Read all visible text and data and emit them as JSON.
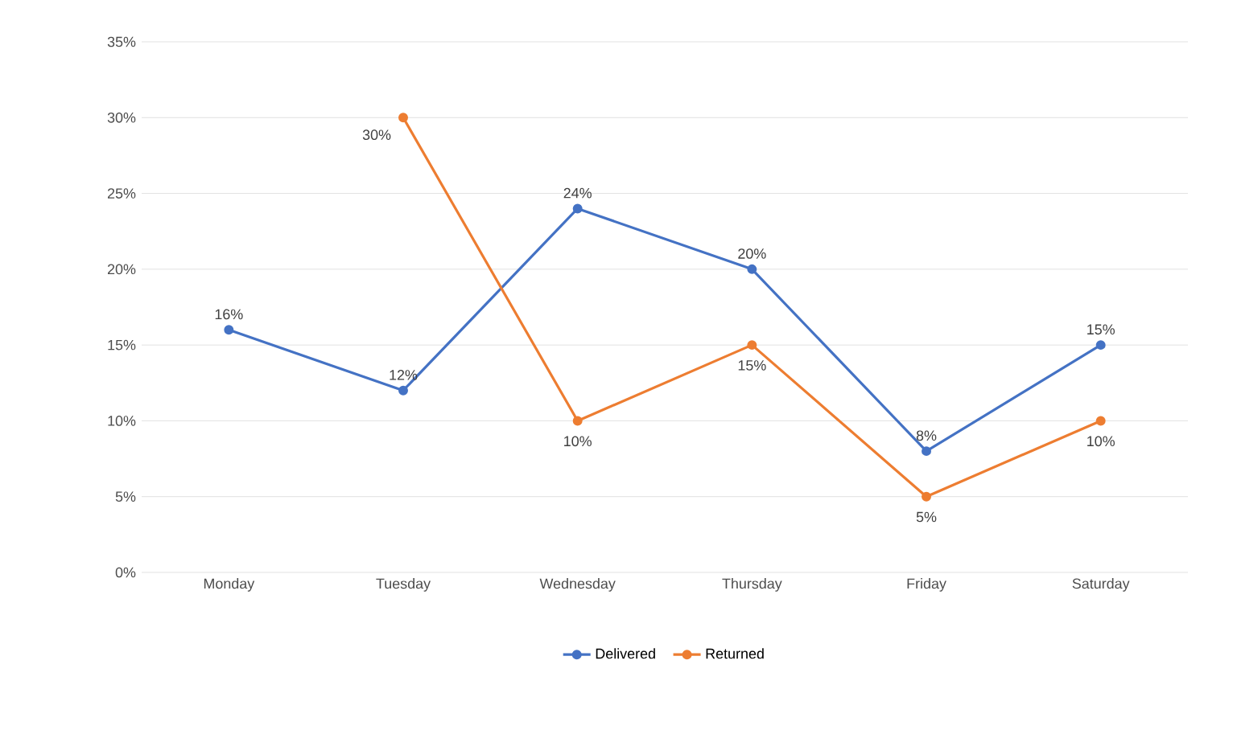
{
  "chart_data": {
    "type": "line",
    "categories": [
      "Monday",
      "Tuesday",
      "Wednesday",
      "Thursday",
      "Friday",
      "Saturday"
    ],
    "series": [
      {
        "name": "Delivered",
        "color": "#4472c4",
        "values": [
          16,
          12,
          24,
          20,
          8,
          15
        ],
        "value_labels": [
          "16%",
          "12%",
          "24%",
          "20%",
          "8%",
          "15%"
        ]
      },
      {
        "name": "Returned",
        "color": "#ed7d31",
        "values": [
          null,
          30,
          10,
          15,
          5,
          10
        ],
        "value_labels": [
          null,
          "30%",
          "10%",
          "15%",
          "5%",
          "10%"
        ]
      }
    ],
    "ylim": [
      0,
      35
    ],
    "yticks": [
      {
        "value": 0,
        "label": "0%"
      },
      {
        "value": 5,
        "label": "5%"
      },
      {
        "value": 10,
        "label": "10%"
      },
      {
        "value": 15,
        "label": "15%"
      },
      {
        "value": 20,
        "label": "20%"
      },
      {
        "value": 25,
        "label": "25%"
      },
      {
        "value": 30,
        "label": "30%"
      },
      {
        "value": 35,
        "label": "35%"
      }
    ],
    "grid": "y",
    "legend": "bottom",
    "marker": "circle",
    "line_style": "solid"
  }
}
